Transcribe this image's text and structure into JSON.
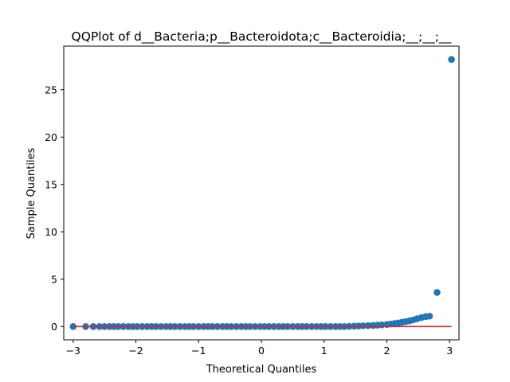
{
  "chart_data": {
    "type": "scatter",
    "title": "QQPlot of d__Bacteria;p__Bacteroidota;c__Bacteroidia;__;__;__",
    "xlabel": "Theoretical Quantiles",
    "ylabel": "Sample Quantiles",
    "xlim": [
      -3.15,
      3.15
    ],
    "ylim": [
      -1.4,
      29.6
    ],
    "xticks": [
      -3,
      -2,
      -1,
      0,
      1,
      2,
      3
    ],
    "yticks": [
      0,
      5,
      10,
      15,
      20,
      25
    ],
    "grid": false,
    "marker_color": "#1f77b4",
    "line_color": "#d62728",
    "reference_line": {
      "x": [
        -3.0,
        3.03
      ],
      "y": [
        0,
        0
      ]
    },
    "series": [
      {
        "points": [
          [
            -3.0,
            0
          ],
          [
            -2.8,
            0
          ],
          [
            -2.68,
            0
          ],
          [
            -2.58,
            0
          ],
          [
            -2.5,
            0
          ],
          [
            -2.42,
            0
          ],
          [
            -2.35,
            0
          ],
          [
            -2.28,
            0
          ],
          [
            -2.2,
            0
          ],
          [
            -2.12,
            0
          ],
          [
            -2.05,
            0
          ],
          [
            -1.98,
            0
          ],
          [
            -1.9,
            0
          ],
          [
            -1.82,
            0
          ],
          [
            -1.75,
            0
          ],
          [
            -1.68,
            0
          ],
          [
            -1.6,
            0
          ],
          [
            -1.52,
            0
          ],
          [
            -1.45,
            0
          ],
          [
            -1.38,
            0
          ],
          [
            -1.3,
            0
          ],
          [
            -1.22,
            0
          ],
          [
            -1.15,
            0
          ],
          [
            -1.08,
            0
          ],
          [
            -1.0,
            0
          ],
          [
            -0.92,
            0
          ],
          [
            -0.85,
            0
          ],
          [
            -0.78,
            0
          ],
          [
            -0.7,
            0
          ],
          [
            -0.62,
            0
          ],
          [
            -0.55,
            0
          ],
          [
            -0.48,
            0
          ],
          [
            -0.4,
            0
          ],
          [
            -0.32,
            0
          ],
          [
            -0.25,
            0
          ],
          [
            -0.18,
            0
          ],
          [
            -0.1,
            0
          ],
          [
            -0.02,
            0
          ],
          [
            0.05,
            0
          ],
          [
            0.12,
            0
          ],
          [
            0.2,
            0
          ],
          [
            0.28,
            0
          ],
          [
            0.35,
            0
          ],
          [
            0.42,
            0
          ],
          [
            0.5,
            0
          ],
          [
            0.58,
            0
          ],
          [
            0.65,
            0
          ],
          [
            0.72,
            0
          ],
          [
            0.8,
            0
          ],
          [
            0.88,
            0
          ],
          [
            0.95,
            0
          ],
          [
            1.02,
            0
          ],
          [
            1.1,
            0
          ],
          [
            1.18,
            0
          ],
          [
            1.25,
            0
          ],
          [
            1.32,
            0
          ],
          [
            1.4,
            0.02
          ],
          [
            1.48,
            0.04
          ],
          [
            1.55,
            0.06
          ],
          [
            1.62,
            0.08
          ],
          [
            1.7,
            0.1
          ],
          [
            1.78,
            0.12
          ],
          [
            1.85,
            0.15
          ],
          [
            1.92,
            0.18
          ],
          [
            2.0,
            0.22
          ],
          [
            2.06,
            0.27
          ],
          [
            2.12,
            0.32
          ],
          [
            2.18,
            0.38
          ],
          [
            2.24,
            0.45
          ],
          [
            2.3,
            0.52
          ],
          [
            2.36,
            0.6
          ],
          [
            2.42,
            0.7
          ],
          [
            2.48,
            0.82
          ],
          [
            2.55,
            0.95
          ],
          [
            2.62,
            1.05
          ],
          [
            2.68,
            1.1
          ],
          [
            2.8,
            3.6
          ],
          [
            3.03,
            28.2
          ]
        ]
      }
    ]
  }
}
